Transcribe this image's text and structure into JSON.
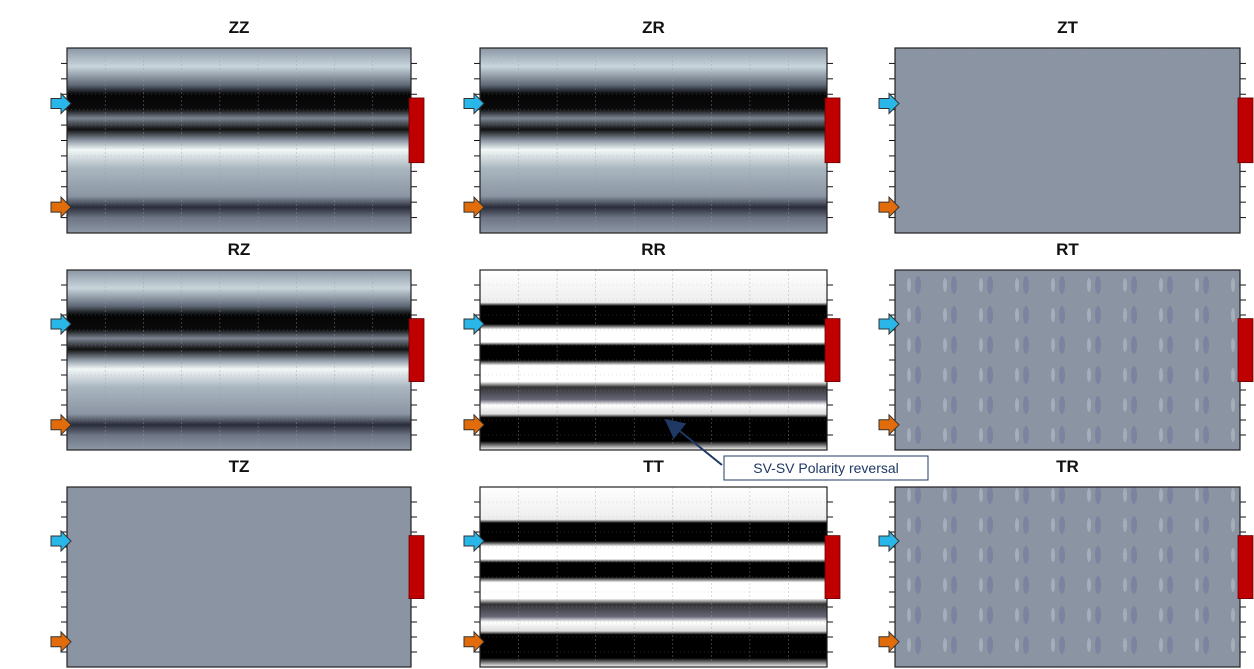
{
  "panels": [
    {
      "title": "ZZ",
      "style": "banded"
    },
    {
      "title": "ZR",
      "style": "banded"
    },
    {
      "title": "ZT",
      "style": "flat"
    },
    {
      "title": "RZ",
      "style": "banded"
    },
    {
      "title": "RR",
      "style": "strong"
    },
    {
      "title": "RT",
      "style": "faint"
    },
    {
      "title": "TZ",
      "style": "flat"
    },
    {
      "title": "TT",
      "style": "strong"
    },
    {
      "title": "TR",
      "style": "faint"
    }
  ],
  "annotation": {
    "text": "SV-SV Polarity reversal"
  }
}
